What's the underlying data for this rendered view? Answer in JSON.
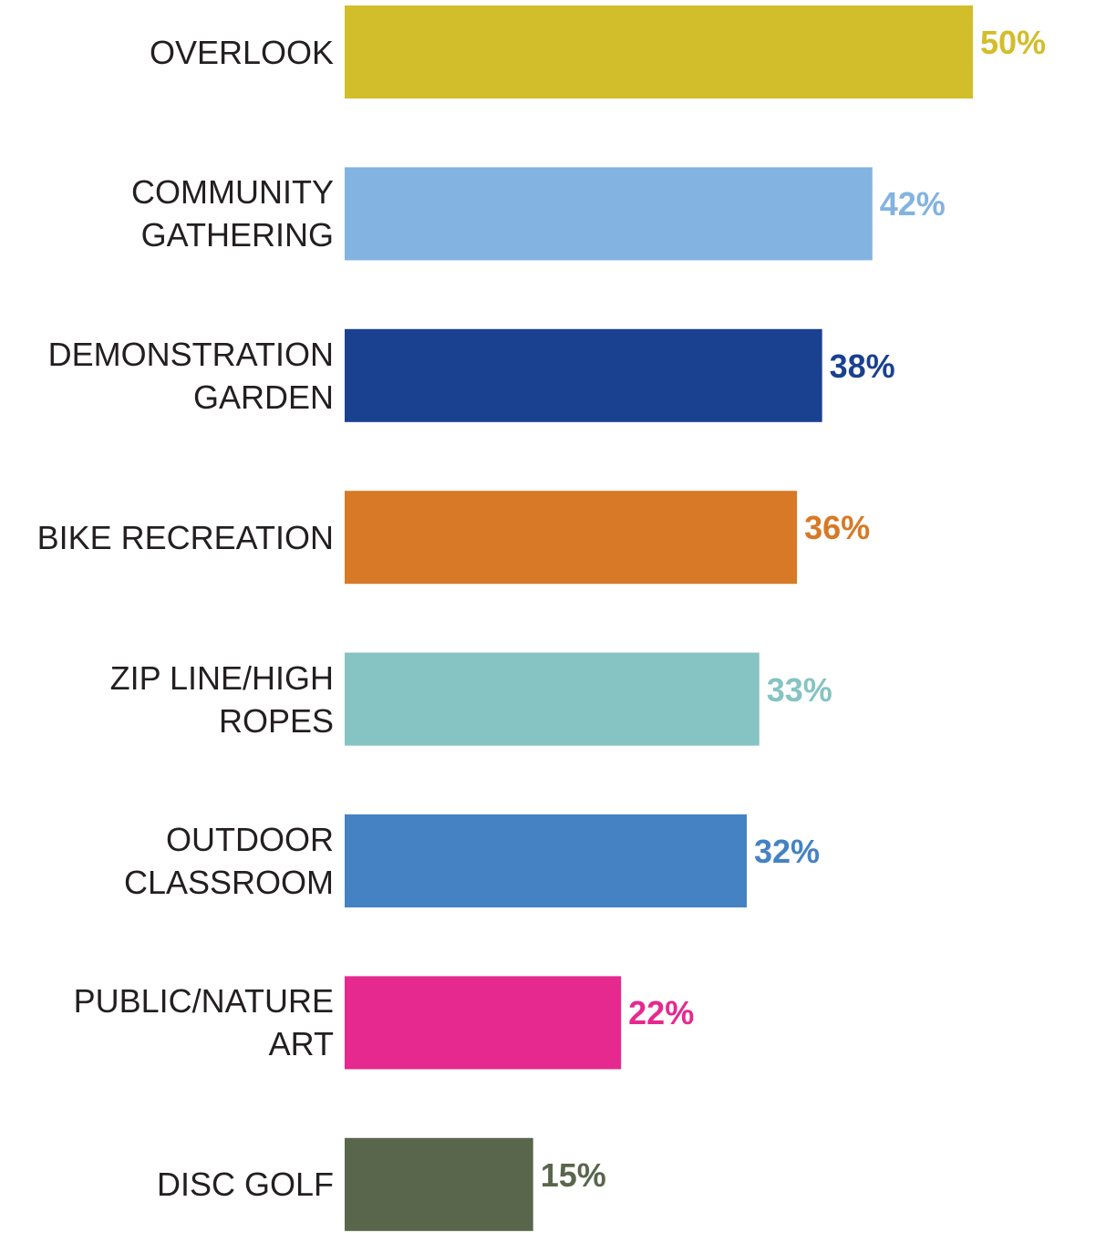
{
  "chart_data": {
    "type": "hbar",
    "categories": [
      "OVERLOOK",
      "COMMUNITY GATHERING",
      "DEMONSTRATION GARDEN",
      "BIKE RECREATION",
      "ZIP LINE/HIGH ROPES",
      "OUTDOOR CLASSROOM",
      "PUBLIC/NATURE ART",
      "DISC GOLF"
    ],
    "values": [
      50,
      42,
      38,
      36,
      33,
      32,
      22,
      15
    ],
    "value_labels": [
      "50%",
      "42%",
      "38%",
      "36%",
      "33%",
      "32%",
      "22%",
      "15%"
    ],
    "colors": [
      "#d2bd2b",
      "#82b3e1",
      "#1a4190",
      "#d77927",
      "#86c3c3",
      "#4582c4",
      "#e6298f",
      "#5a664b"
    ]
  }
}
